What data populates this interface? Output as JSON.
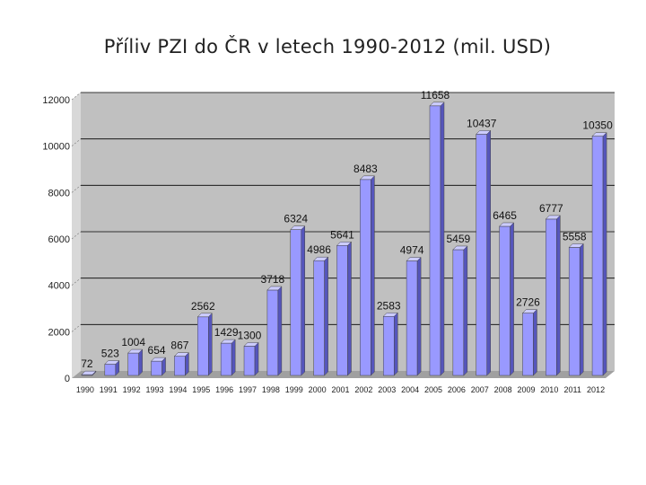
{
  "chart_data": {
    "type": "bar",
    "title": "Příliv PZI do ČR v letech 1990-2012 (mil. USD)",
    "categories": [
      "1990",
      "1991",
      "1992",
      "1993",
      "1994",
      "1995",
      "1996",
      "1997",
      "1998",
      "1999",
      "2000",
      "2001",
      "2002",
      "2003",
      "2004",
      "2005",
      "2006",
      "2007",
      "2008",
      "2009",
      "2010",
      "2011",
      "2012"
    ],
    "values": [
      72,
      523,
      1004,
      654,
      867,
      2562,
      1429,
      1300,
      3718,
      6324,
      4986,
      5641,
      8483,
      2583,
      4974,
      11658,
      5459,
      10437,
      6465,
      2726,
      6777,
      5558,
      10350
    ],
    "y_ticks": [
      "0",
      "2000",
      "4000",
      "6000",
      "8000",
      "10000",
      "12000"
    ],
    "ylim": [
      0,
      12000
    ],
    "xlabel": "",
    "ylabel": "",
    "grid": true,
    "legend": "none",
    "colors": {
      "bar": "#9999ff",
      "bar_side": "#5555bb",
      "bar_top": "#ccccff",
      "wall": "#c0c0c0",
      "floor": "#a0a0a0",
      "grid": "#000000"
    }
  }
}
